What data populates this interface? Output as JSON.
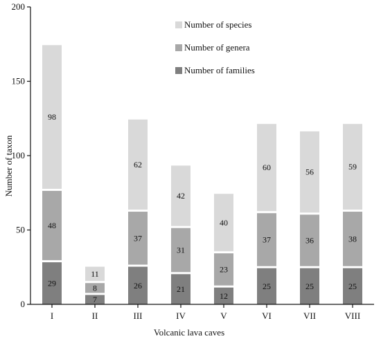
{
  "chart_data": {
    "type": "bar",
    "stacked": true,
    "categories": [
      "I",
      "II",
      "III",
      "IV",
      "V",
      "VI",
      "VII",
      "VIII"
    ],
    "series": [
      {
        "name": "Number of families",
        "values": [
          29,
          7,
          26,
          21,
          12,
          25,
          25,
          25
        ],
        "color": "#7f7f7f"
      },
      {
        "name": "Number of genera",
        "values": [
          48,
          8,
          37,
          31,
          23,
          37,
          36,
          38
        ],
        "color": "#a8a8a8"
      },
      {
        "name": "Number of species",
        "values": [
          98,
          11,
          62,
          42,
          40,
          60,
          56,
          59
        ],
        "color": "#d9d9d9"
      }
    ],
    "legend_order": [
      "Number of species",
      "Number of genera",
      "Number of families"
    ],
    "legend_position": "top-right",
    "xlabel": "Volcanic lava caves",
    "ylabel": "Number of taxon",
    "ylim": [
      0,
      200
    ],
    "yticks": [
      0,
      50,
      100,
      150,
      200
    ],
    "grid": false
  }
}
